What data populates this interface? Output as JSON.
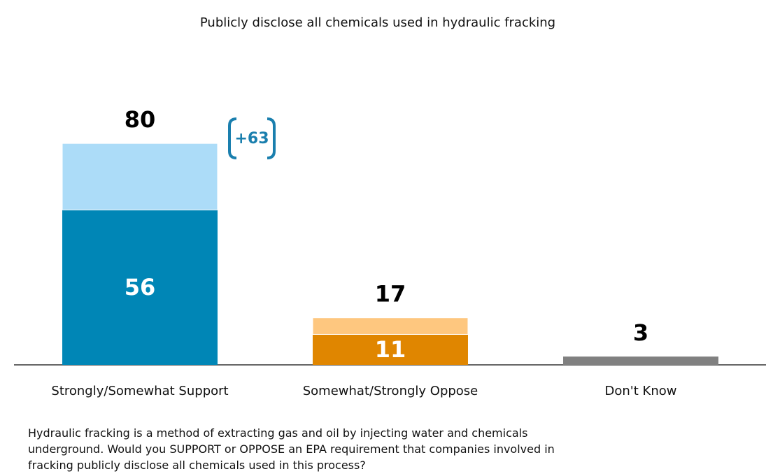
{
  "chart_data": {
    "type": "stacked_bar",
    "title": "Publicly disclose all chemicals used in hydraulic fracking",
    "categories": [
      "Strongly/Somewhat Support",
      "Somewhat/Strongly Oppose",
      "Don't Know"
    ],
    "series": [
      {
        "colors": [
          "#0086b6",
          "#e08600",
          "#808080"
        ],
        "values": [
          56,
          11,
          3
        ]
      },
      {
        "colors": [
          "#acdcf8",
          "#fec77f",
          null
        ],
        "values": [
          24,
          6,
          null
        ]
      }
    ],
    "totals": [
      80,
      17,
      3
    ],
    "annotation": "+63",
    "ylim": [
      0,
      100
    ],
    "note": "Hydraulic fracking is a method of extracting gas and oil by injecting water and chemicals underground. Would you SUPPORT or OPPOSE an EPA requirement that companies involved in fracking publicly disclose all chemicals used in this process?"
  }
}
